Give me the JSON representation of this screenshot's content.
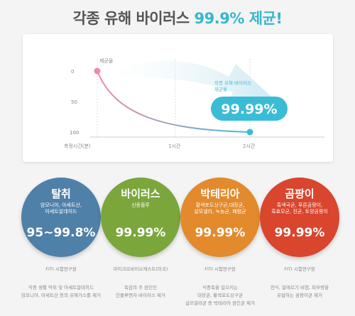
{
  "title": {
    "main": "각종 유해 바이러스 ",
    "highlight": "99.9% 제균!"
  },
  "chart": {
    "series_label": "제균율",
    "y_ticks": [
      "0",
      "50",
      "100"
    ],
    "x_ticks": [
      "측정시간(분)",
      "1시간",
      "2시간"
    ],
    "annotation": [
      "작종 유해 바이러스",
      "제균율"
    ],
    "callout": "99.99%",
    "colors": {
      "curve_start": "#f08aa6",
      "curve_end": "#3bbcd6",
      "arrow": "#cfe9f2"
    }
  },
  "cards": [
    {
      "name": "탈취",
      "sub": [
        "암모니아, 아세트산,",
        "아세트알데히드"
      ],
      "value": "95~99.8%",
      "color": "#4f80a8",
      "org": "FITI 시험연구원",
      "desc": [
        "각종 생활 악취 및 아세트알데히드",
        "암모니아, 아세트산 등의 유해가스를 제거"
      ]
    },
    {
      "name": "바이러스",
      "sub": [
        "신종플루"
      ],
      "value": "99.99%",
      "color": "#7aa63c",
      "org": "마이크로바이오케스트(미국)",
      "desc": [
        "독감의 주 원인인",
        "인플루엔자 바이러스 제거"
      ]
    },
    {
      "name": "박테리아",
      "sub": [
        "황색포도상구균,대장균,",
        "살모넬라, 녹농균, 폐렴균"
      ],
      "value": "99.99%",
      "color": "#e38a2c",
      "org": "FITI 시험연구원",
      "desc": [
        "식중독을 일으키는",
        "대장균, 황색포도상구균",
        "살모넬라균 등 박테리아 원인균 제거"
      ]
    },
    {
      "name": "곰팡이",
      "sub": [
        "흑색국균, 푸른곰팡이,",
        "흑효모균, 진균, 토양곰팡이"
      ],
      "value": "99.99%",
      "color": "#d9452d",
      "org": "FITI 시험연구원",
      "desc": [
        "천식, 알레르기 비염, 피부병을",
        "유발하는 곰팡이균 제거"
      ]
    }
  ]
}
